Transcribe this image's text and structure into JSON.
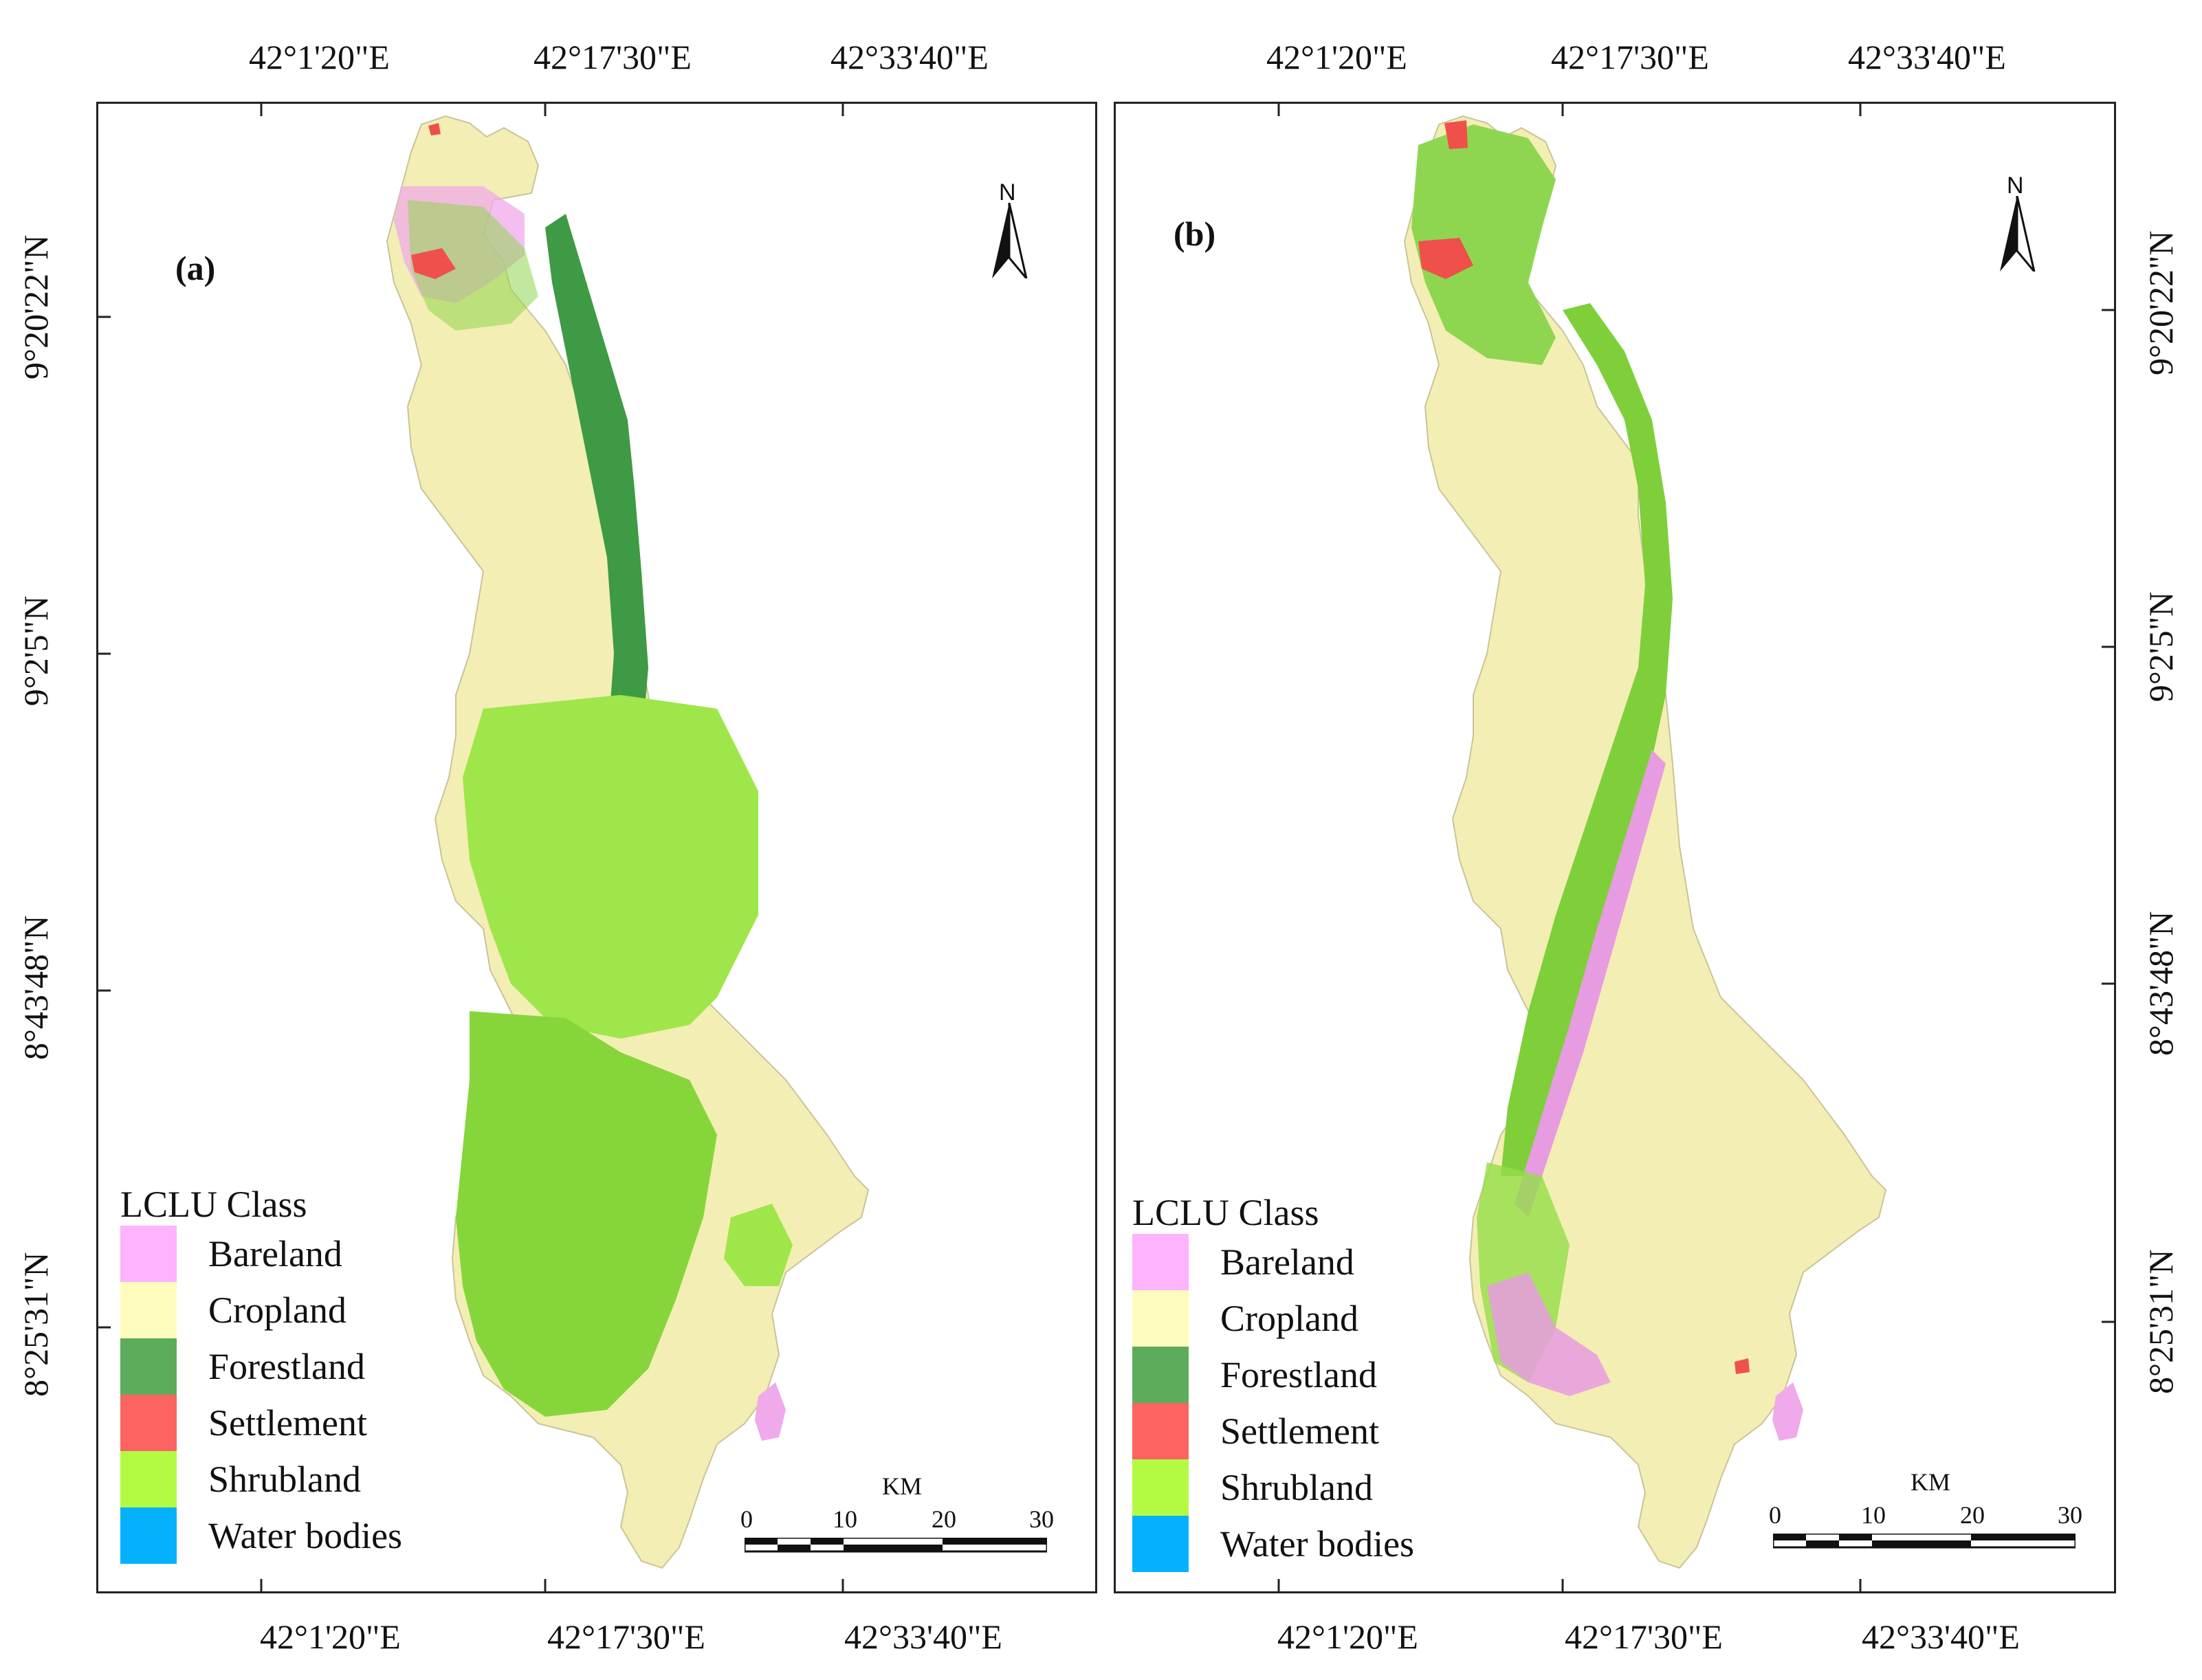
{
  "figure": {
    "panels": [
      {
        "id": "a",
        "label": "(a)",
        "top_ticks": [
          "42°1'20\"E",
          "42°17'30\"E",
          "42°33'40\"E"
        ],
        "bottom_ticks": [
          "42°1'20\"E",
          "42°17'30\"E",
          "42°33'40\"E"
        ],
        "side_ticks": [
          "9°20'22\"N",
          "9°2'5\"N",
          "8°43'48\"N",
          "8°25'31\"N"
        ],
        "legend_title": "LCLU Class",
        "legend_items": [
          {
            "label": "Bareland",
            "color": "#fdb3fd"
          },
          {
            "label": "Cropland",
            "color": "#fefcbd"
          },
          {
            "label": "Forestland",
            "color": "#5cac5c"
          },
          {
            "label": "Settlement",
            "color": "#fd6361"
          },
          {
            "label": "Shrubland",
            "color": "#b3fb43"
          },
          {
            "label": "Water bodies",
            "color": "#05b1fd"
          }
        ],
        "north_label": "N",
        "scale": {
          "unit": "KM",
          "ticks": [
            "0",
            "10",
            "20",
            "30"
          ]
        }
      },
      {
        "id": "b",
        "label": "(b)",
        "top_ticks": [
          "42°1'20\"E",
          "42°17'30\"E",
          "42°33'40\"E"
        ],
        "bottom_ticks": [
          "42°1'20\"E",
          "42°17'30\"E",
          "42°33'40\"E"
        ],
        "side_ticks": [
          "9°20'22\"N",
          "9°2'5\"N",
          "8°43'48\"N",
          "8°25'31\"N"
        ],
        "legend_title": "LCLU Class",
        "legend_items": [
          {
            "label": "Bareland",
            "color": "#fdb3fd"
          },
          {
            "label": "Cropland",
            "color": "#fefcbd"
          },
          {
            "label": "Forestland",
            "color": "#5cac5c"
          },
          {
            "label": "Settlement",
            "color": "#fd6361"
          },
          {
            "label": "Shrubland",
            "color": "#b3fb43"
          },
          {
            "label": "Water bodies",
            "color": "#05b1fd"
          }
        ],
        "north_label": "N",
        "scale": {
          "unit": "KM",
          "ticks": [
            "0",
            "10",
            "20",
            "30"
          ]
        }
      }
    ]
  }
}
